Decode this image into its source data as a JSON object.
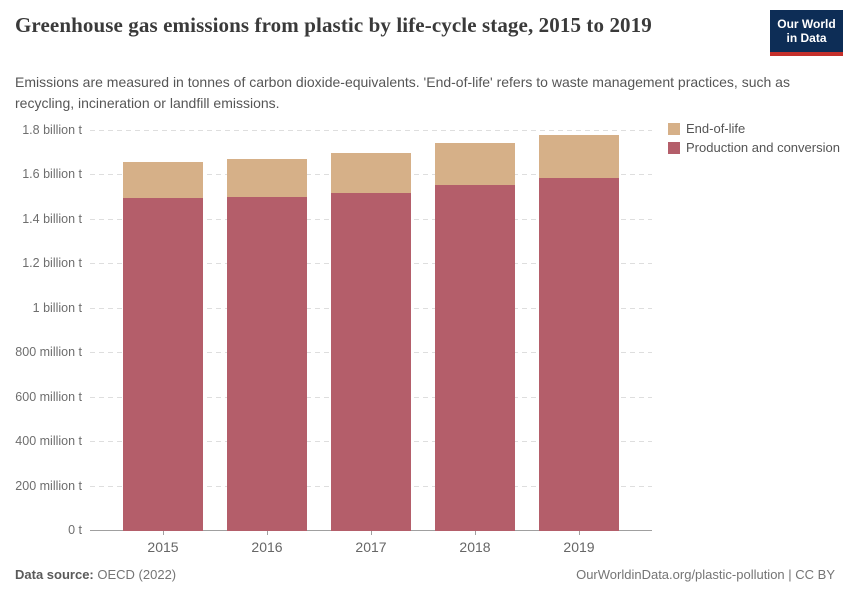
{
  "header": {
    "title": "Greenhouse gas emissions from plastic by life-cycle stage, 2015 to 2019",
    "subtitle": "Emissions are measured in tonnes of carbon dioxide-equivalents. 'End-of-life' refers to waste management practices, such as recycling, incineration or landfill emissions.",
    "logo": {
      "line1": "Our World",
      "line2": "in Data",
      "bg_color": "#0d2d56",
      "stripe_color": "#c5302b"
    }
  },
  "chart_data": {
    "type": "bar",
    "stacked": true,
    "title": "Greenhouse gas emissions from plastic by life-cycle stage, 2015 to 2019",
    "unit": "tonnes of carbon dioxide-equivalents",
    "categories": [
      "2015",
      "2016",
      "2017",
      "2018",
      "2019"
    ],
    "series": [
      {
        "name": "Production and conversion",
        "color": "#b45e6a",
        "values_million_t": [
          1500,
          1505,
          1520,
          1555,
          1590
        ]
      },
      {
        "name": "End-of-life",
        "color": "#d6b088",
        "values_million_t": [
          160,
          170,
          180,
          190,
          190
        ]
      }
    ],
    "totals_million_t": [
      1660,
      1675,
      1700,
      1745,
      1780
    ],
    "ylim": [
      0,
      1800
    ],
    "yticks": [
      {
        "value": 1800,
        "label": "1.8 billion t"
      },
      {
        "value": 1600,
        "label": "1.6 billion t"
      },
      {
        "value": 1400,
        "label": "1.4 billion t"
      },
      {
        "value": 1200,
        "label": "1.2 billion t"
      },
      {
        "value": 1000,
        "label": "1 billion t"
      },
      {
        "value": 800,
        "label": "800 million t"
      },
      {
        "value": 600,
        "label": "600 million t"
      },
      {
        "value": 400,
        "label": "400 million t"
      },
      {
        "value": 200,
        "label": "200 million t"
      },
      {
        "value": 0,
        "label": "0 t"
      }
    ],
    "grid": "horizontal-dashed",
    "legend_position": "right-top",
    "legend": [
      "End-of-life",
      "Production and conversion"
    ]
  },
  "footer": {
    "source_label": "Data source:",
    "source_value": "OECD (2022)",
    "right_text": "OurWorldinData.org/plastic-pollution | CC BY"
  }
}
